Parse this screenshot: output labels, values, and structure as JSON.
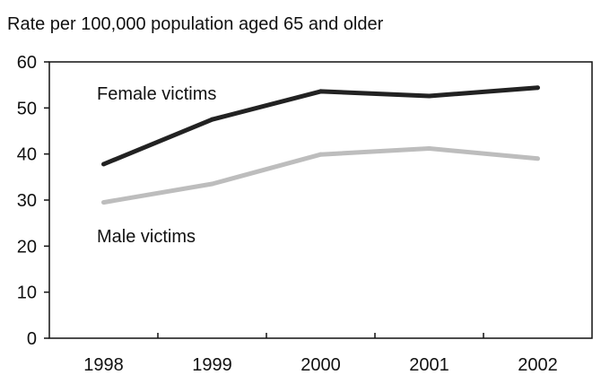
{
  "chart_data": {
    "type": "line",
    "ylabel": "Rate per 100,000 population aged 65 and older",
    "categories": [
      "1998",
      "1999",
      "2000",
      "2001",
      "2002"
    ],
    "ylim": [
      0,
      60
    ],
    "yticks": [
      "0",
      "10",
      "20",
      "30",
      "40",
      "50",
      "60"
    ],
    "grid": false,
    "series": [
      {
        "name": "Female victims",
        "values": [
          37.8,
          47.5,
          53.6,
          52.6,
          54.4
        ],
        "color": "#222222"
      },
      {
        "name": "Male victims",
        "values": [
          29.5,
          33.5,
          39.9,
          41.2,
          39.0
        ],
        "color": "#bdbdbd"
      }
    ]
  }
}
